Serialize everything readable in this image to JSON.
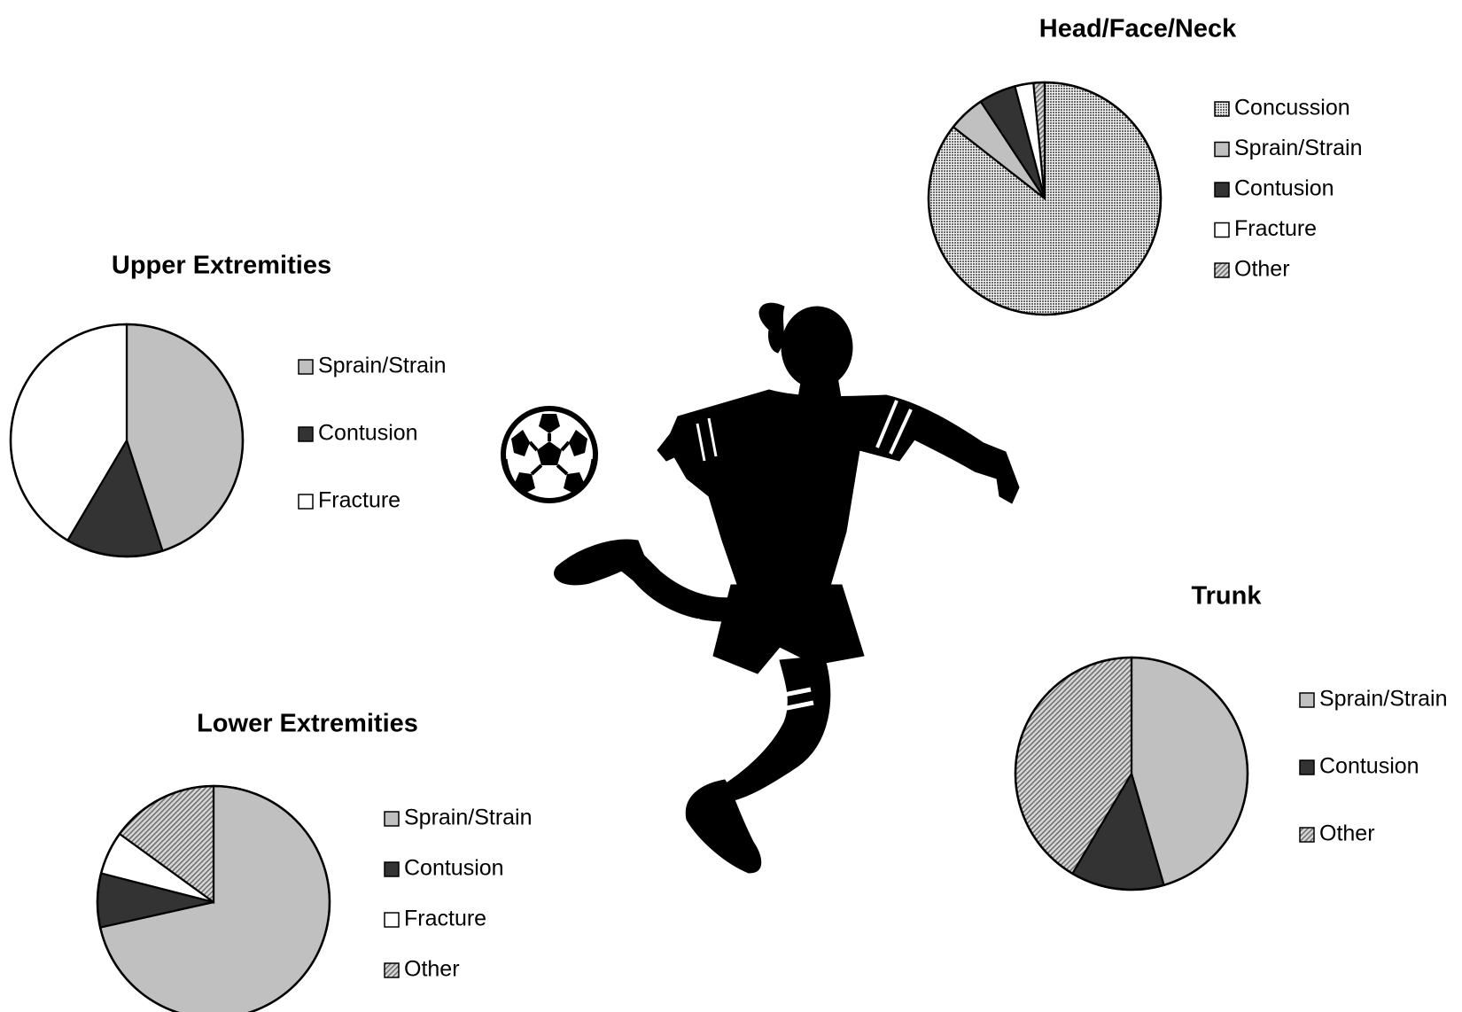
{
  "colors": {
    "concussion": "#8a8a8a",
    "sprain_strain": "#c0c0c0",
    "contusion": "#333333",
    "fracture": "#ffffff",
    "other": "#bdbdbd",
    "outline": "#000000"
  },
  "illustration": {
    "player_icon": "soccer-player-silhouette-icon",
    "ball_icon": "soccer-ball-icon"
  },
  "chart_data": [
    {
      "id": "head",
      "type": "pie",
      "title": "Head/Face/Neck",
      "start_angle_deg": 0,
      "direction": "clockwise",
      "slices": [
        {
          "label": "Concussion",
          "value": 83,
          "pattern": "concussion"
        },
        {
          "label": "Sprain/Strain",
          "value": 5,
          "pattern": "sprain_strain"
        },
        {
          "label": "Contusion",
          "value": 5,
          "pattern": "contusion"
        },
        {
          "label": "Fracture",
          "value": 2.5,
          "pattern": "fracture"
        },
        {
          "label": "Other",
          "value": 1.5,
          "pattern": "other"
        }
      ],
      "legend": [
        "Concussion",
        "Sprain/Strain",
        "Contusion",
        "Fracture",
        "Other"
      ],
      "legend_placement": "right"
    },
    {
      "id": "upper",
      "type": "pie",
      "title": "Upper Extremities",
      "start_angle_deg": 0,
      "direction": "clockwise",
      "slices": [
        {
          "label": "Sprain/Strain",
          "value": 45,
          "pattern": "sprain_strain"
        },
        {
          "label": "Contusion",
          "value": 13.5,
          "pattern": "contusion"
        },
        {
          "label": "Fracture",
          "value": 41.5,
          "pattern": "fracture"
        }
      ],
      "legend": [
        "Sprain/Strain",
        "Contusion",
        "Fracture"
      ],
      "legend_placement": "right"
    },
    {
      "id": "lower",
      "type": "pie",
      "title": "Lower Extremities",
      "start_angle_deg": 0,
      "direction": "clockwise",
      "slices": [
        {
          "label": "Sprain/Strain",
          "value": 71.5,
          "pattern": "sprain_strain"
        },
        {
          "label": "Contusion",
          "value": 7.5,
          "pattern": "contusion"
        },
        {
          "label": "Fracture",
          "value": 6,
          "pattern": "fracture"
        },
        {
          "label": "Other",
          "value": 15,
          "pattern": "other"
        }
      ],
      "legend": [
        "Sprain/Strain",
        "Contusion",
        "Fracture",
        "Other"
      ],
      "legend_placement": "right"
    },
    {
      "id": "trunk",
      "type": "pie",
      "title": "Trunk",
      "start_angle_deg": 0,
      "direction": "clockwise",
      "slices": [
        {
          "label": "Sprain/Strain",
          "value": 45.5,
          "pattern": "sprain_strain"
        },
        {
          "label": "Contusion",
          "value": 13,
          "pattern": "contusion"
        },
        {
          "label": "Other",
          "value": 41.5,
          "pattern": "other"
        }
      ],
      "legend": [
        "Sprain/Strain",
        "Contusion",
        "Other"
      ],
      "legend_placement": "right"
    }
  ]
}
